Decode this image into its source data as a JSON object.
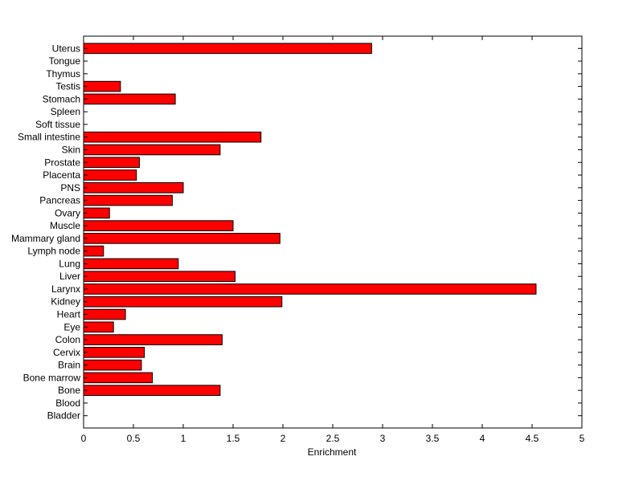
{
  "chart_data": {
    "type": "bar",
    "orientation": "horizontal",
    "xlabel": "Enrichment",
    "ylabel": "",
    "title": "",
    "xlim": [
      0,
      5
    ],
    "xticks": [
      0,
      0.5,
      1,
      1.5,
      2,
      2.5,
      3,
      3.5,
      4,
      4.5,
      5
    ],
    "xtick_labels": [
      "0",
      "0.5",
      "1",
      "1.5",
      "2",
      "2.5",
      "3",
      "3.5",
      "4",
      "4.5",
      "5"
    ],
    "categories": [
      "Uterus",
      "Tongue",
      "Thymus",
      "Testis",
      "Stomach",
      "Spleen",
      "Soft tissue",
      "Small intestine",
      "Skin",
      "Prostate",
      "Placenta",
      "PNS",
      "Pancreas",
      "Ovary",
      "Muscle",
      "Mammary gland",
      "Lymph node",
      "Lung",
      "Liver",
      "Larynx",
      "Kidney",
      "Heart",
      "Eye",
      "Colon",
      "Cervix",
      "Brain",
      "Bone marrow",
      "Bone",
      "Blood",
      "Bladder"
    ],
    "values": [
      2.89,
      0,
      0,
      0.37,
      0.92,
      0,
      0,
      1.78,
      1.37,
      0.56,
      0.53,
      1.0,
      0.89,
      0.26,
      1.5,
      1.97,
      0.2,
      0.95,
      1.52,
      4.54,
      1.99,
      0.42,
      0.3,
      1.39,
      0.61,
      0.58,
      0.69,
      1.37,
      0,
      0
    ],
    "bar_color": "#ff0000",
    "grid": false,
    "legend": "none"
  }
}
